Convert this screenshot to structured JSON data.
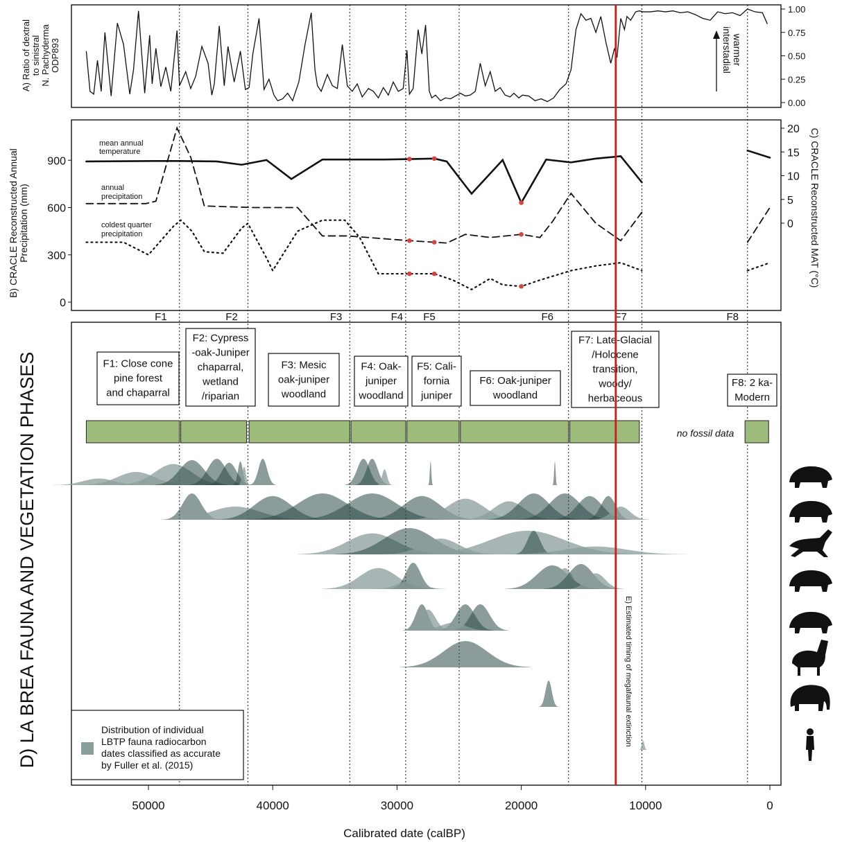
{
  "chart_data": [
    {
      "type": "line",
      "panel": "A",
      "ylabel_lines": [
        "A)  Ratio of dextral",
        "to sinistral",
        "N. Pachyderma",
        "ODP893"
      ],
      "yticks": [
        "0.00",
        "0.25",
        "0.50",
        "0.75",
        "1.00"
      ],
      "ylim": [
        0,
        1.0
      ],
      "annotation_lines": [
        "warmer",
        "interstadial"
      ],
      "series": [
        {
          "x": [
            55000,
            54700,
            54400,
            54100,
            53800,
            53500,
            53000,
            52500,
            52000,
            51500,
            51200,
            50800,
            50300,
            49900,
            49700,
            49400,
            49000,
            48600,
            48200,
            47700,
            47500,
            47000,
            46600,
            46200,
            45700,
            45200,
            44900,
            44700,
            44300,
            43900,
            43600,
            43100,
            42600,
            42200,
            41900,
            41600,
            41100,
            40700,
            40300,
            39900,
            39600,
            39200,
            38800,
            38400,
            37900,
            37400,
            36900,
            36600,
            36400,
            36100,
            35600,
            35200,
            34800,
            34400,
            34000,
            33600,
            33200,
            32800,
            32300,
            31900,
            31500,
            31100,
            30700,
            30300,
            29900,
            29500,
            29200,
            29000,
            28700,
            28300,
            28000,
            27700,
            27400,
            27200,
            26900,
            26500,
            26100,
            25700,
            25300,
            24900,
            24500,
            24100,
            23700,
            23300,
            22900,
            22500,
            22100,
            21700,
            21300,
            20900,
            20600,
            20200,
            19900,
            19400,
            18900,
            18400,
            17900,
            17400,
            16900,
            16400,
            16000,
            15600,
            15200,
            14800,
            14400,
            14000,
            13600,
            13200,
            12800,
            12500,
            12300,
            12000,
            11700,
            11500,
            11200,
            10800,
            10500,
            10200,
            9600,
            9000,
            8400,
            7800,
            7200,
            6600,
            6000,
            5400,
            4800,
            4200,
            3600,
            3000,
            2400,
            1800,
            1200,
            600,
            200
          ],
          "y": [
            0.55,
            0.12,
            0.09,
            0.45,
            0.12,
            0.75,
            0.07,
            0.85,
            0.62,
            0.09,
            0.35,
            0.98,
            0.1,
            0.72,
            0.2,
            0.58,
            0.17,
            0.38,
            0.12,
            0.77,
            0.18,
            0.33,
            0.15,
            0.28,
            0.6,
            0.42,
            0.08,
            0.2,
            0.82,
            0.18,
            0.6,
            0.22,
            0.55,
            0.14,
            0.16,
            0.52,
            0.9,
            0.14,
            0.25,
            0.08,
            0.02,
            0.04,
            0.1,
            0.02,
            0.22,
            0.62,
            0.96,
            0.35,
            0.18,
            0.12,
            0.3,
            0.18,
            0.15,
            0.62,
            0.18,
            0.12,
            0.2,
            0.06,
            0.15,
            0.12,
            0.05,
            0.16,
            0.08,
            0.22,
            0.12,
            0.15,
            0.56,
            0.09,
            0.15,
            0.78,
            0.52,
            0.83,
            0.12,
            0.05,
            0.08,
            0.02,
            0.05,
            0.04,
            0.07,
            0.1,
            0.07,
            0.08,
            0.12,
            0.42,
            0.18,
            0.33,
            0.12,
            0.16,
            0.08,
            0.06,
            0.1,
            0.05,
            0.08,
            0.07,
            0.02,
            0.04,
            0.01,
            0.05,
            0.14,
            0.2,
            0.35,
            0.78,
            0.95,
            0.88,
            0.9,
            0.75,
            0.92,
            0.65,
            0.42,
            0.58,
            0.48,
            0.9,
            0.78,
            0.92,
            0.88,
            0.97,
            0.98,
            0.97,
            0.97,
            0.98,
            0.97,
            0.98,
            0.96,
            0.97,
            0.94,
            0.9,
            0.88,
            0.97,
            0.95,
            0.96,
            0.93,
            1.0,
            0.97,
            0.96,
            0.84
          ]
        }
      ]
    },
    {
      "type": "line",
      "panel": "B and C",
      "ylabel_left_lines": [
        "B) CRACLE Reconstructed  Annual",
        "Precipitation (mm)"
      ],
      "ylabel_right": "C) CRACLE Reconstructed MAT (°C)",
      "yticks_left": [
        "0",
        "300",
        "600",
        "900"
      ],
      "yticks_right": [
        "0",
        "5",
        "10",
        "15",
        "20"
      ],
      "series": [
        {
          "name_lines": [
            "mean annual",
            "temperature"
          ],
          "style": "solid",
          "axis": "right",
          "segments": [
            {
              "x": [
                55000,
                49500,
                47500,
                44500,
                42500,
                40500,
                38500,
                36000,
                31000,
                29000,
                27000,
                26000,
                24000,
                21500,
                20000,
                18000,
                16000,
                14000,
                12000,
                10300
              ],
              "y": [
                13,
                13.1,
                13.1,
                13,
                12.3,
                13.3,
                9.3,
                13.4,
                13.4,
                13.5,
                13.6,
                13,
                6.2,
                13.3,
                4.3,
                13.4,
                12.8,
                13.6,
                14.1,
                8.6
              ]
            },
            {
              "x": [
                1800,
                0
              ],
              "y": [
                15.3,
                13.8
              ]
            }
          ],
          "highlighted": [
            {
              "x": 29000,
              "y": 13.5
            },
            {
              "x": 27000,
              "y": 13.6
            },
            {
              "x": 20000,
              "y": 4.3
            }
          ]
        },
        {
          "name_lines": [
            "annual",
            "precipitation"
          ],
          "style": "dashed",
          "axis": "left",
          "segments": [
            {
              "x": [
                55000,
                50200,
                49400,
                47700,
                46600,
                45500,
                41500,
                38000,
                36000,
                34000,
                29000,
                27000,
                26000,
                24500,
                22500,
                20000,
                18500,
                17500,
                16000,
                14000,
                12000,
                10300
              ],
              "y": [
                625,
                625,
                640,
                1105,
                920,
                610,
                600,
                600,
                420,
                420,
                390,
                380,
                375,
                430,
                410,
                430,
                410,
                510,
                690,
                500,
                390,
                570
              ]
            },
            {
              "x": [
                1800,
                0
              ],
              "y": [
                380,
                600
              ]
            }
          ],
          "highlighted": [
            {
              "x": 29000,
              "y": 390
            },
            {
              "x": 27000,
              "y": 380
            },
            {
              "x": 20000,
              "y": 430
            }
          ]
        },
        {
          "name_lines": [
            "coldest quarter",
            "precipitation"
          ],
          "style": "dotted",
          "axis": "left",
          "segments": [
            {
              "x": [
                55000,
                52000,
                50000,
                48000,
                47400,
                46500,
                45500,
                44000,
                42500,
                42000,
                40500,
                40000,
                38000,
                36000,
                34200,
                33000,
                31500,
                29000,
                27000,
                25500,
                24000,
                22500,
                21500,
                20000,
                18500,
                16000,
                14000,
                12000,
                10300
              ],
              "y": [
                380,
                380,
                300,
                480,
                520,
                450,
                320,
                310,
                470,
                500,
                280,
                200,
                450,
                520,
                520,
                410,
                180,
                180,
                180,
                140,
                80,
                150,
                110,
                100,
                140,
                200,
                230,
                250,
                200
              ]
            },
            {
              "x": [
                1800,
                0
              ],
              "y": [
                200,
                250
              ]
            }
          ],
          "highlighted": [
            {
              "x": 29000,
              "y": 180
            },
            {
              "x": 27000,
              "y": 180
            },
            {
              "x": 20000,
              "y": 100
            }
          ]
        }
      ]
    },
    {
      "type": "area",
      "panel": "D",
      "title": "D) LA BREA FAUNA AND VEGETATION PHASES",
      "xlabel": "Calibrated date (calBP)",
      "xticks": [
        "50000",
        "40000",
        "30000",
        "20000",
        "10000",
        "0"
      ],
      "xlim": [
        57000,
        -1000
      ],
      "phase_boundaries": [
        47500,
        42000,
        33800,
        29300,
        25000,
        16200,
        10300,
        1800,
        0
      ],
      "phase_labels": [
        {
          "label": "F1",
          "x": 49000
        },
        {
          "label": "F2",
          "x": 43300
        },
        {
          "label": "F3",
          "x": 34900
        },
        {
          "label": "F4",
          "x": 30000
        },
        {
          "label": "F5",
          "x": 27400
        },
        {
          "label": "F6",
          "x": 17900
        },
        {
          "label": "F7",
          "x": 12000
        },
        {
          "label": "F8",
          "x": 3000
        }
      ],
      "phases": [
        {
          "lines": [
            "F1: Close cone",
            "pine forest",
            "and chaparral"
          ],
          "start": 55000,
          "end": 47500
        },
        {
          "lines": [
            "F2: Cypress",
            "-oak-Juniper",
            "chaparral,",
            "wetland",
            "/riparian"
          ],
          "start": 47400,
          "end": 42100
        },
        {
          "lines": [
            "F3: Mesic",
            "oak-juniper",
            "woodland"
          ],
          "start": 41900,
          "end": 33800
        },
        {
          "lines": [
            "F4: Oak-",
            "juniper",
            "woodland"
          ],
          "start": 33700,
          "end": 29300
        },
        {
          "lines": [
            "F5: Cali-",
            "fornia",
            "juniper"
          ],
          "start": 29200,
          "end": 25000
        },
        {
          "lines": [
            "F6: Oak-juniper",
            "woodland"
          ],
          "start": 24900,
          "end": 16200
        },
        {
          "lines": [
            "F7: Late-Glacial",
            "/Holocene",
            "transition,",
            "woody/",
            "herbaceous"
          ],
          "start": 16100,
          "end": 10500
        },
        {
          "lines": [
            "F8: 2 ka-",
            "Modern"
          ],
          "start": 2000,
          "end": 100
        }
      ],
      "no_fossil_label": "no fossil data",
      "extinction_annotation": "E)  Estimated timing of megafaunal extinction",
      "extinction_date": 12400,
      "legend_lines": [
        "Distribution of individual",
        "LBTP fauna radiocarbon",
        "dates classified as accurate",
        "by Fuller et al. (2015)"
      ],
      "colors": {
        "fauna_light": "#8a9e9b",
        "fauna_dark": "#2c4a47",
        "vegetation": "#9dbb7a",
        "extinction": "#d11a1a",
        "highlight_point": "#d9433b"
      },
      "fauna_rows": [
        {
          "icon": "dire-wolf-icon",
          "peaks": [
            [
              54000,
              2500,
              0.25
            ],
            [
              51000,
              3000,
              0.5
            ],
            [
              48000,
              3000,
              0.8
            ],
            [
              46500,
              2000,
              0.95
            ],
            [
              44500,
              1500,
              1.0
            ],
            [
              43500,
              1200,
              0.85
            ],
            [
              42600,
              400,
              0.9
            ],
            [
              42300,
              300,
              0.7
            ],
            [
              40800,
              700,
              1.0
            ],
            [
              32700,
              1000,
              1.0
            ],
            [
              32000,
              900,
              1.0
            ],
            [
              31000,
              400,
              0.6
            ],
            [
              27300,
              120,
              0.9
            ],
            [
              17300,
              120,
              0.9
            ]
          ]
        },
        {
          "icon": "saber-tooth-cat-icon",
          "peaks": [
            [
              46500,
              1500,
              1.0
            ],
            [
              43000,
              4000,
              0.5
            ],
            [
              40000,
              3000,
              0.9
            ],
            [
              36000,
              4000,
              1.0
            ],
            [
              32000,
              4000,
              1.0
            ],
            [
              28000,
              3000,
              0.9
            ],
            [
              24500,
              3000,
              0.8
            ],
            [
              21000,
              2500,
              0.7
            ],
            [
              19000,
              2500,
              1.0
            ],
            [
              16500,
              2500,
              1.0
            ],
            [
              14500,
              2000,
              0.9
            ],
            [
              13000,
              1200,
              0.9
            ],
            [
              12000,
              1500,
              0.5
            ]
          ]
        },
        {
          "icon": "horse-icon",
          "peaks": [
            [
              32000,
              4000,
              0.8
            ],
            [
              29000,
              4000,
              1.0
            ],
            [
              26500,
              3000,
              0.6
            ],
            [
              19500,
              6000,
              0.9
            ],
            [
              19000,
              1000,
              0.9
            ],
            [
              14000,
              5000,
              0.3
            ]
          ]
        },
        {
          "icon": "bison-icon",
          "peaks": [
            [
              31500,
              3000,
              0.8
            ],
            [
              28700,
              1200,
              1.0
            ],
            [
              29000,
              2000,
              0.3
            ],
            [
              17500,
              2500,
              0.9
            ],
            [
              16500,
              1200,
              0.8
            ],
            [
              15200,
              2000,
              0.95
            ],
            [
              14000,
              1500,
              0.6
            ]
          ]
        },
        {
          "icon": "ground-sloth-icon",
          "peaks": [
            [
              28000,
              1000,
              1.0
            ],
            [
              27500,
              1200,
              0.8
            ],
            [
              24500,
              1500,
              1.0
            ],
            [
              23300,
              1500,
              1.0
            ],
            [
              25500,
              2000,
              0.3
            ]
          ]
        },
        {
          "icon": "camel-icon",
          "peaks": [
            [
              24500,
              3500,
              1.0
            ]
          ]
        },
        {
          "icon": "mammoth-icon",
          "peaks": [
            [
              17800,
              500,
              1.0
            ]
          ]
        },
        {
          "icon": "human-icon",
          "peaks": [
            [
              10200,
              200,
              0.6
            ]
          ]
        }
      ]
    }
  ]
}
